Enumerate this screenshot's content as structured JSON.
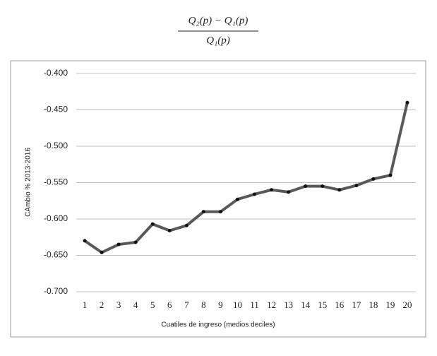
{
  "formula": {
    "numerator": "Q₂(p) − Q₁(p)",
    "denominator": "Q₁(p)"
  },
  "chart_data": {
    "type": "line",
    "x_label": "Cuatiles de ingreso (medios deciles)",
    "y_label": "CAmbio % 2013-2016",
    "categories": [
      "1",
      "2",
      "3",
      "4",
      "5",
      "6",
      "7",
      "8",
      "9",
      "10",
      "11",
      "12",
      "13",
      "14",
      "15",
      "16",
      "17",
      "18",
      "19",
      "20"
    ],
    "values": [
      -0.63,
      -0.646,
      -0.635,
      -0.632,
      -0.607,
      -0.616,
      -0.609,
      -0.59,
      -0.59,
      -0.573,
      -0.566,
      -0.56,
      -0.563,
      -0.555,
      -0.555,
      -0.56,
      -0.554,
      -0.545,
      -0.54,
      -0.44
    ],
    "color": "#595959",
    "ylim": [
      -0.7,
      -0.4
    ],
    "yticks": [
      {
        "value": -0.4,
        "label": "-0.400"
      },
      {
        "value": -0.45,
        "label": "-0.450"
      },
      {
        "value": -0.5,
        "label": "-0.500"
      },
      {
        "value": -0.55,
        "label": "-0.550"
      },
      {
        "value": -0.6,
        "label": "-0.600"
      },
      {
        "value": -0.65,
        "label": "-0.650"
      },
      {
        "value": -0.7,
        "label": "-0.700"
      }
    ],
    "grid": true
  }
}
